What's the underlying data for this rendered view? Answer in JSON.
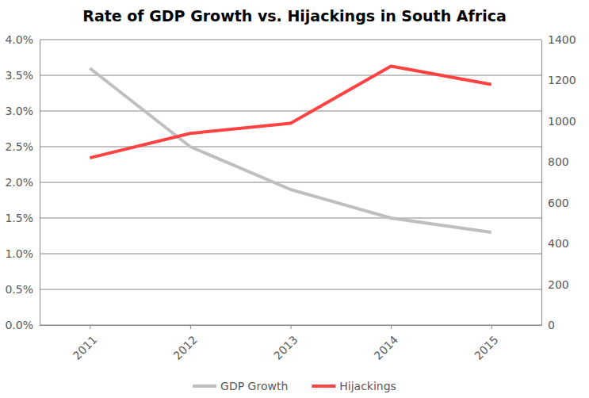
{
  "chart_data": {
    "type": "line",
    "title": "Rate of GDP Growth vs. Hijackings in South Africa",
    "categories": [
      "2011",
      "2012",
      "2013",
      "2014",
      "2015"
    ],
    "series": [
      {
        "name": "GDP Growth",
        "color": "#bfbfbf",
        "values": [
          3.6,
          2.5,
          1.9,
          1.5,
          1.3
        ]
      },
      {
        "name": "Hijackings",
        "color": "#ff4343",
        "axis": "y2",
        "values": [
          820,
          940,
          990,
          1270,
          1180
        ]
      }
    ],
    "ylim": [
      0,
      4
    ],
    "yticks": [
      {
        "value": 0,
        "label": "0.0%"
      },
      {
        "value": 0.5,
        "label": "0.5%"
      },
      {
        "value": 1,
        "label": "1.0%"
      },
      {
        "value": 1.5,
        "label": "1.5%"
      },
      {
        "value": 2,
        "label": "2.0%"
      },
      {
        "value": 2.5,
        "label": "2.5%"
      },
      {
        "value": 3,
        "label": "3.0%"
      },
      {
        "value": 3.5,
        "label": "3.5%"
      },
      {
        "value": 4,
        "label": "4.0%"
      }
    ],
    "y2lim": [
      0,
      1400
    ],
    "y2ticks": [
      0,
      200,
      400,
      600,
      800,
      1000,
      1200,
      1400
    ],
    "grid": true,
    "legend": "bottom"
  }
}
